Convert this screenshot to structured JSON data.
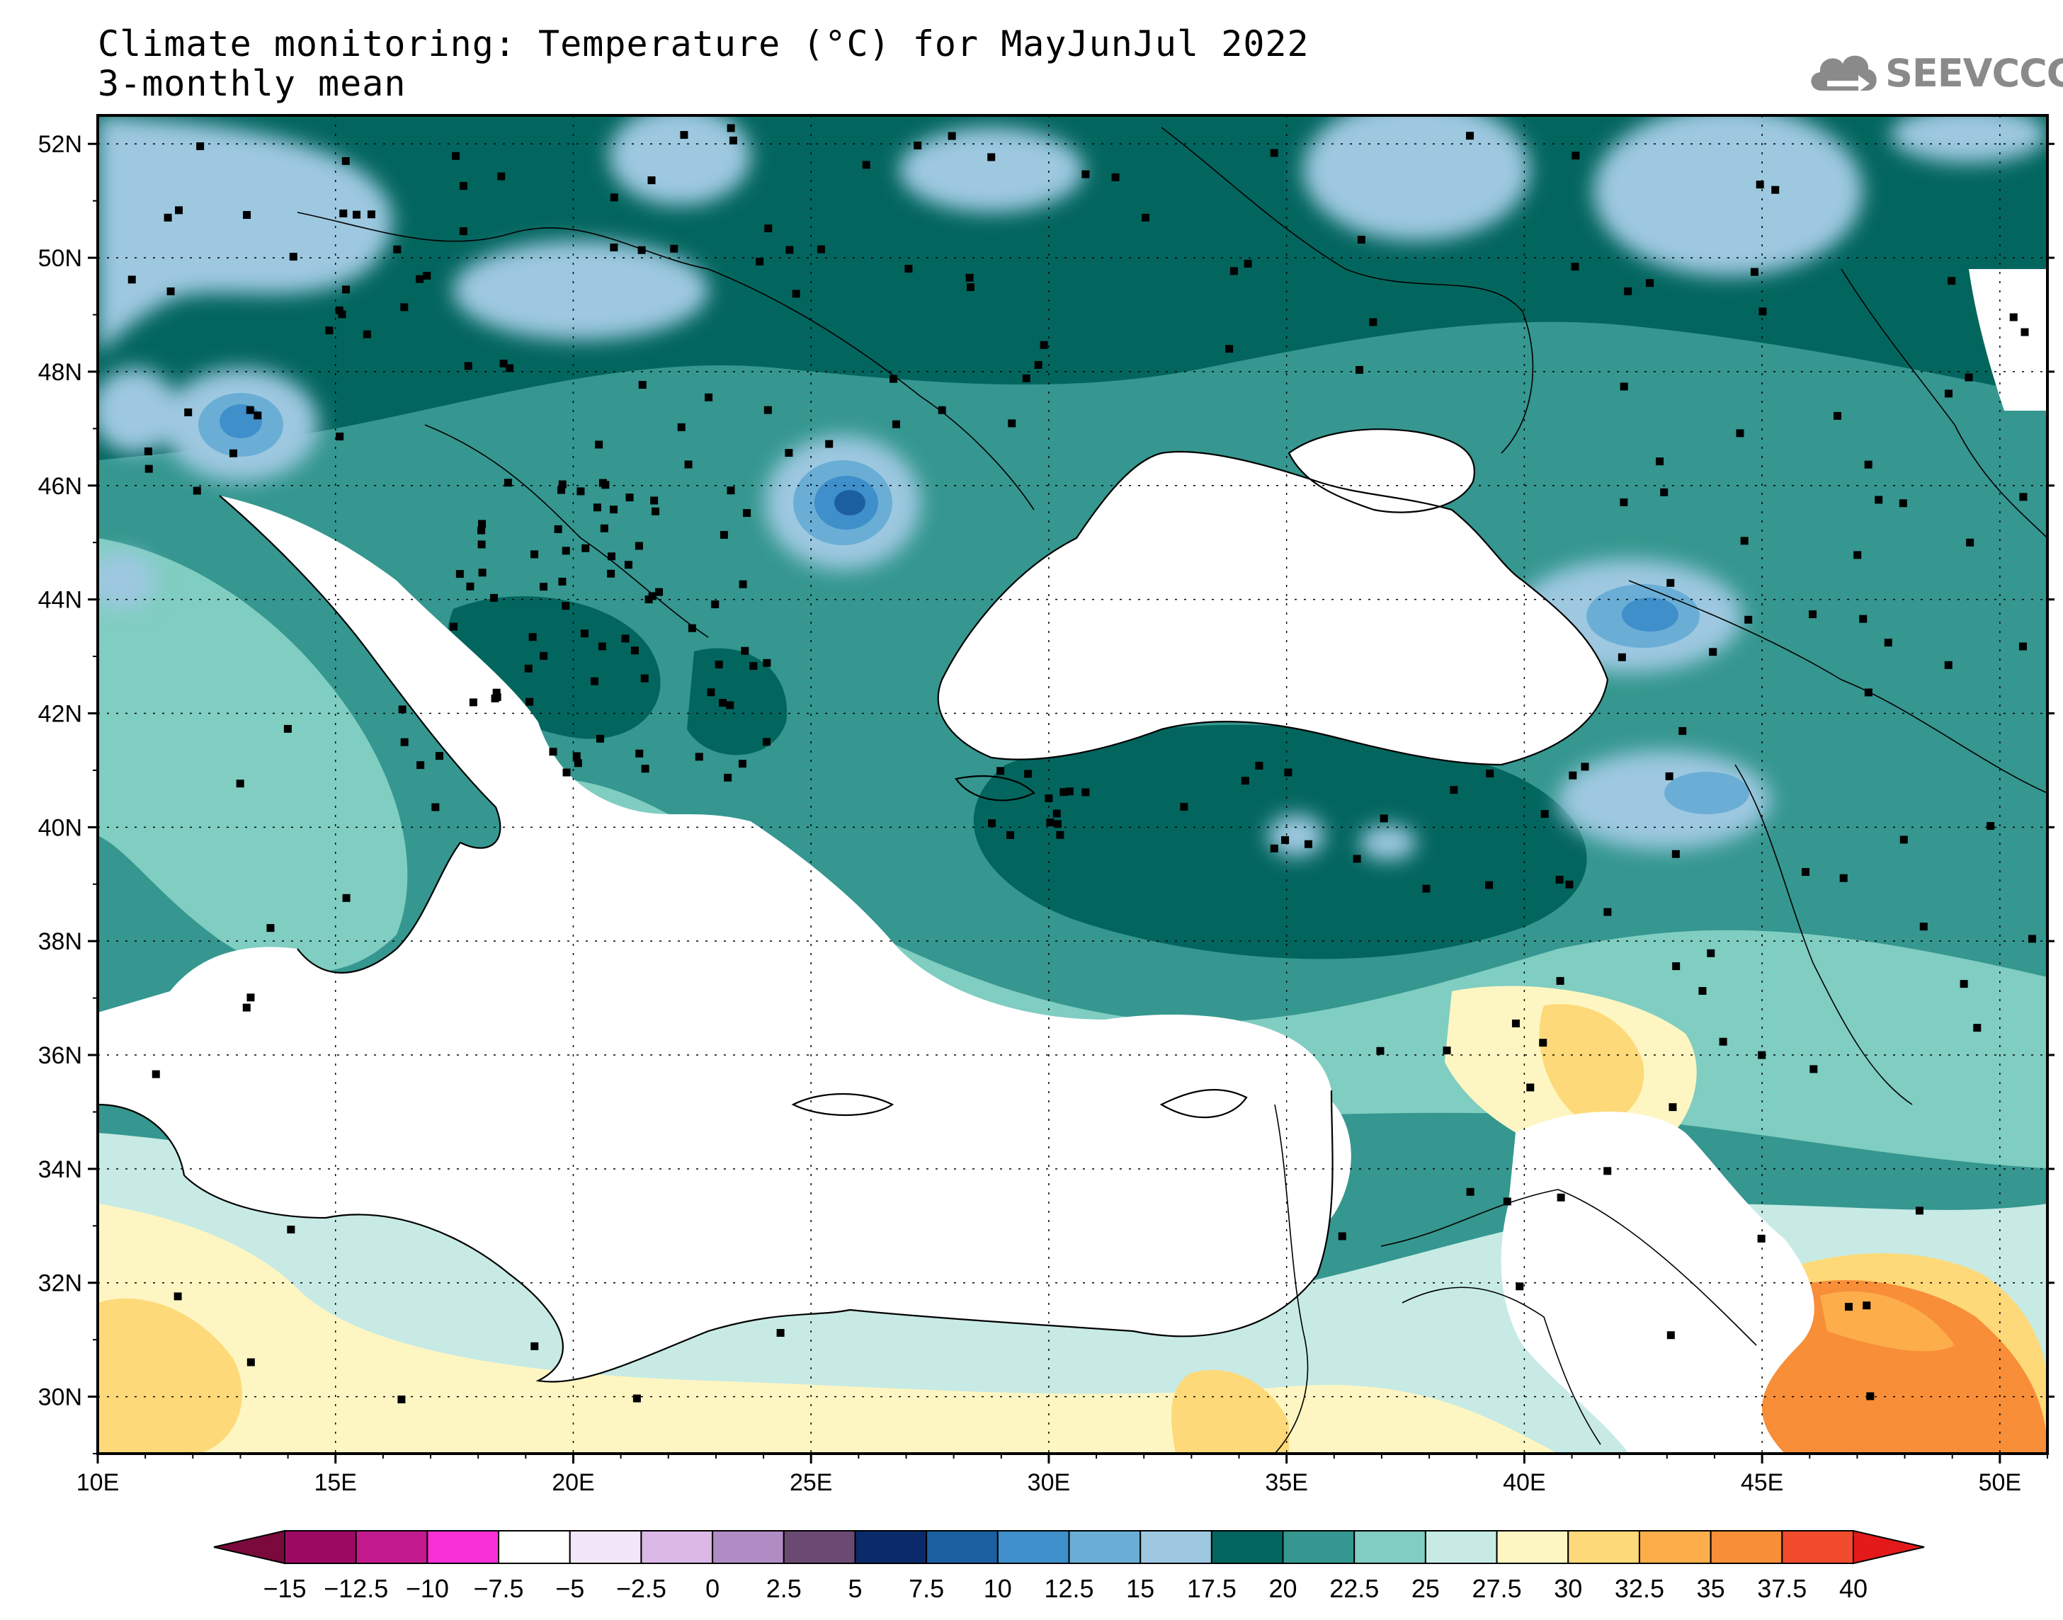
{
  "title": {
    "line1": "Climate monitoring: Temperature (°C) for MayJunJul 2022",
    "line2": "3-monthly mean"
  },
  "logo": {
    "text": "SEEVCCC",
    "icon": "cloud-arrow-icon",
    "color": "#8a8a8a"
  },
  "map": {
    "projection": "lat-lon",
    "lon_range": [
      10,
      51
    ],
    "lat_range": [
      29,
      52.5
    ],
    "x_ticks": [
      "10E",
      "15E",
      "20E",
      "25E",
      "30E",
      "35E",
      "40E",
      "45E",
      "50E"
    ],
    "y_ticks": [
      "52N",
      "50N",
      "48N",
      "46N",
      "44N",
      "42N",
      "40N",
      "38N",
      "36N",
      "34N",
      "32N",
      "30N"
    ],
    "grid": "dotted",
    "station_markers": true
  },
  "colorbar": {
    "labels": [
      "−15",
      "−12.5",
      "−10",
      "−7.5",
      "−5",
      "−2.5",
      "0",
      "2.5",
      "5",
      "7.5",
      "10",
      "12.5",
      "15",
      "17.5",
      "20",
      "22.5",
      "25",
      "27.5",
      "30",
      "32.5",
      "35",
      "37.5",
      "40"
    ],
    "low_arrow_color": "#7a0a3c",
    "high_arrow_color": "#e41a1a",
    "colors": [
      "#9c0a64",
      "#c21a8e",
      "#f830d6",
      "#ffffff",
      "#f3e6f8",
      "#dbb8e6",
      "#b08cc4",
      "#6a4a72",
      "#0a2a6a",
      "#1c5fa0",
      "#3f8fca",
      "#6aaed6",
      "#9dc8e0",
      "#03665e",
      "#35978f",
      "#80cdc1",
      "#c7eae5",
      "#fef6c2",
      "#fdd979",
      "#fdae4b",
      "#f88e38",
      "#ef4b2c"
    ]
  }
}
